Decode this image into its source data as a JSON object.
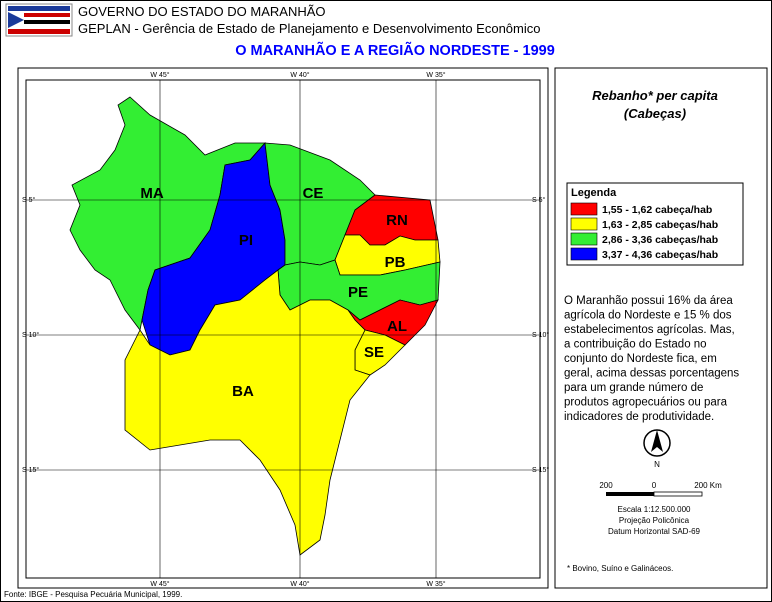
{
  "header": {
    "org": "GOVERNO DO ESTADO DO MARANHÃO",
    "dept": "GEPLAN - Gerência de Estado de Planejamento e Desenvolvimento Econômico",
    "title": "O MARANHÃO E A REGIÃO NORDESTE - 1999"
  },
  "map": {
    "top_ticks": [
      "W 45°",
      "W 40°",
      "W 35°"
    ],
    "bottom_ticks": [
      "W 45°",
      "W 40°",
      "W 35°"
    ],
    "left_ticks": [
      "S 5°",
      "S 10°",
      "S 15°"
    ],
    "right_ticks": [
      "S 5°",
      "S 10°",
      "S 15°"
    ],
    "states": [
      {
        "label": "MA",
        "color": "#33ee33"
      },
      {
        "label": "PI",
        "color": "#0000ff"
      },
      {
        "label": "CE",
        "color": "#33ee33"
      },
      {
        "label": "RN",
        "color": "#ff0000"
      },
      {
        "label": "PB",
        "color": "#ffff00"
      },
      {
        "label": "PE",
        "color": "#33ee33"
      },
      {
        "label": "AL",
        "color": "#ff0000"
      },
      {
        "label": "SE",
        "color": "#ffff00"
      },
      {
        "label": "BA",
        "color": "#ffff00"
      }
    ]
  },
  "panel": {
    "title": "Rebanho* per capita",
    "unit": "(Cabeças)",
    "legend_title": "Legenda",
    "legend": [
      {
        "label": "1,55 - 1,62 cabeça/hab",
        "color": "#ff0000"
      },
      {
        "label": "1,63 - 2,85 cabeças/hab",
        "color": "#ffff00"
      },
      {
        "label": "2,86 - 3,36 cabeças/hab",
        "color": "#33ee33"
      },
      {
        "label": "3,37 - 4,36 cabeças/hab",
        "color": "#0000ff"
      }
    ],
    "description": [
      "O Maranhão possui 16% da área",
      "agrícola do Nordeste e 15 % dos",
      "estabelecimentos agrícolas. Mas,",
      "a contribuição do Estado no",
      "conjunto do Nordeste fica, em",
      "geral, acima dessas porcentagens",
      "para um grande número de",
      "produtos agropecuários ou para",
      "indicadores de produtividade."
    ],
    "north": "N",
    "scale_labels": [
      "200",
      "0",
      "200 Km"
    ],
    "scale_text": [
      "Escala 1:12.500.000",
      "Projeção Policônica",
      "Datum Horizontal SAD-69"
    ],
    "footnote": "* Bovino, Suíno e Galináceos."
  },
  "footer": {
    "source": "Fonte: IBGE - Pesquisa Pecuária Municipal, 1999."
  }
}
